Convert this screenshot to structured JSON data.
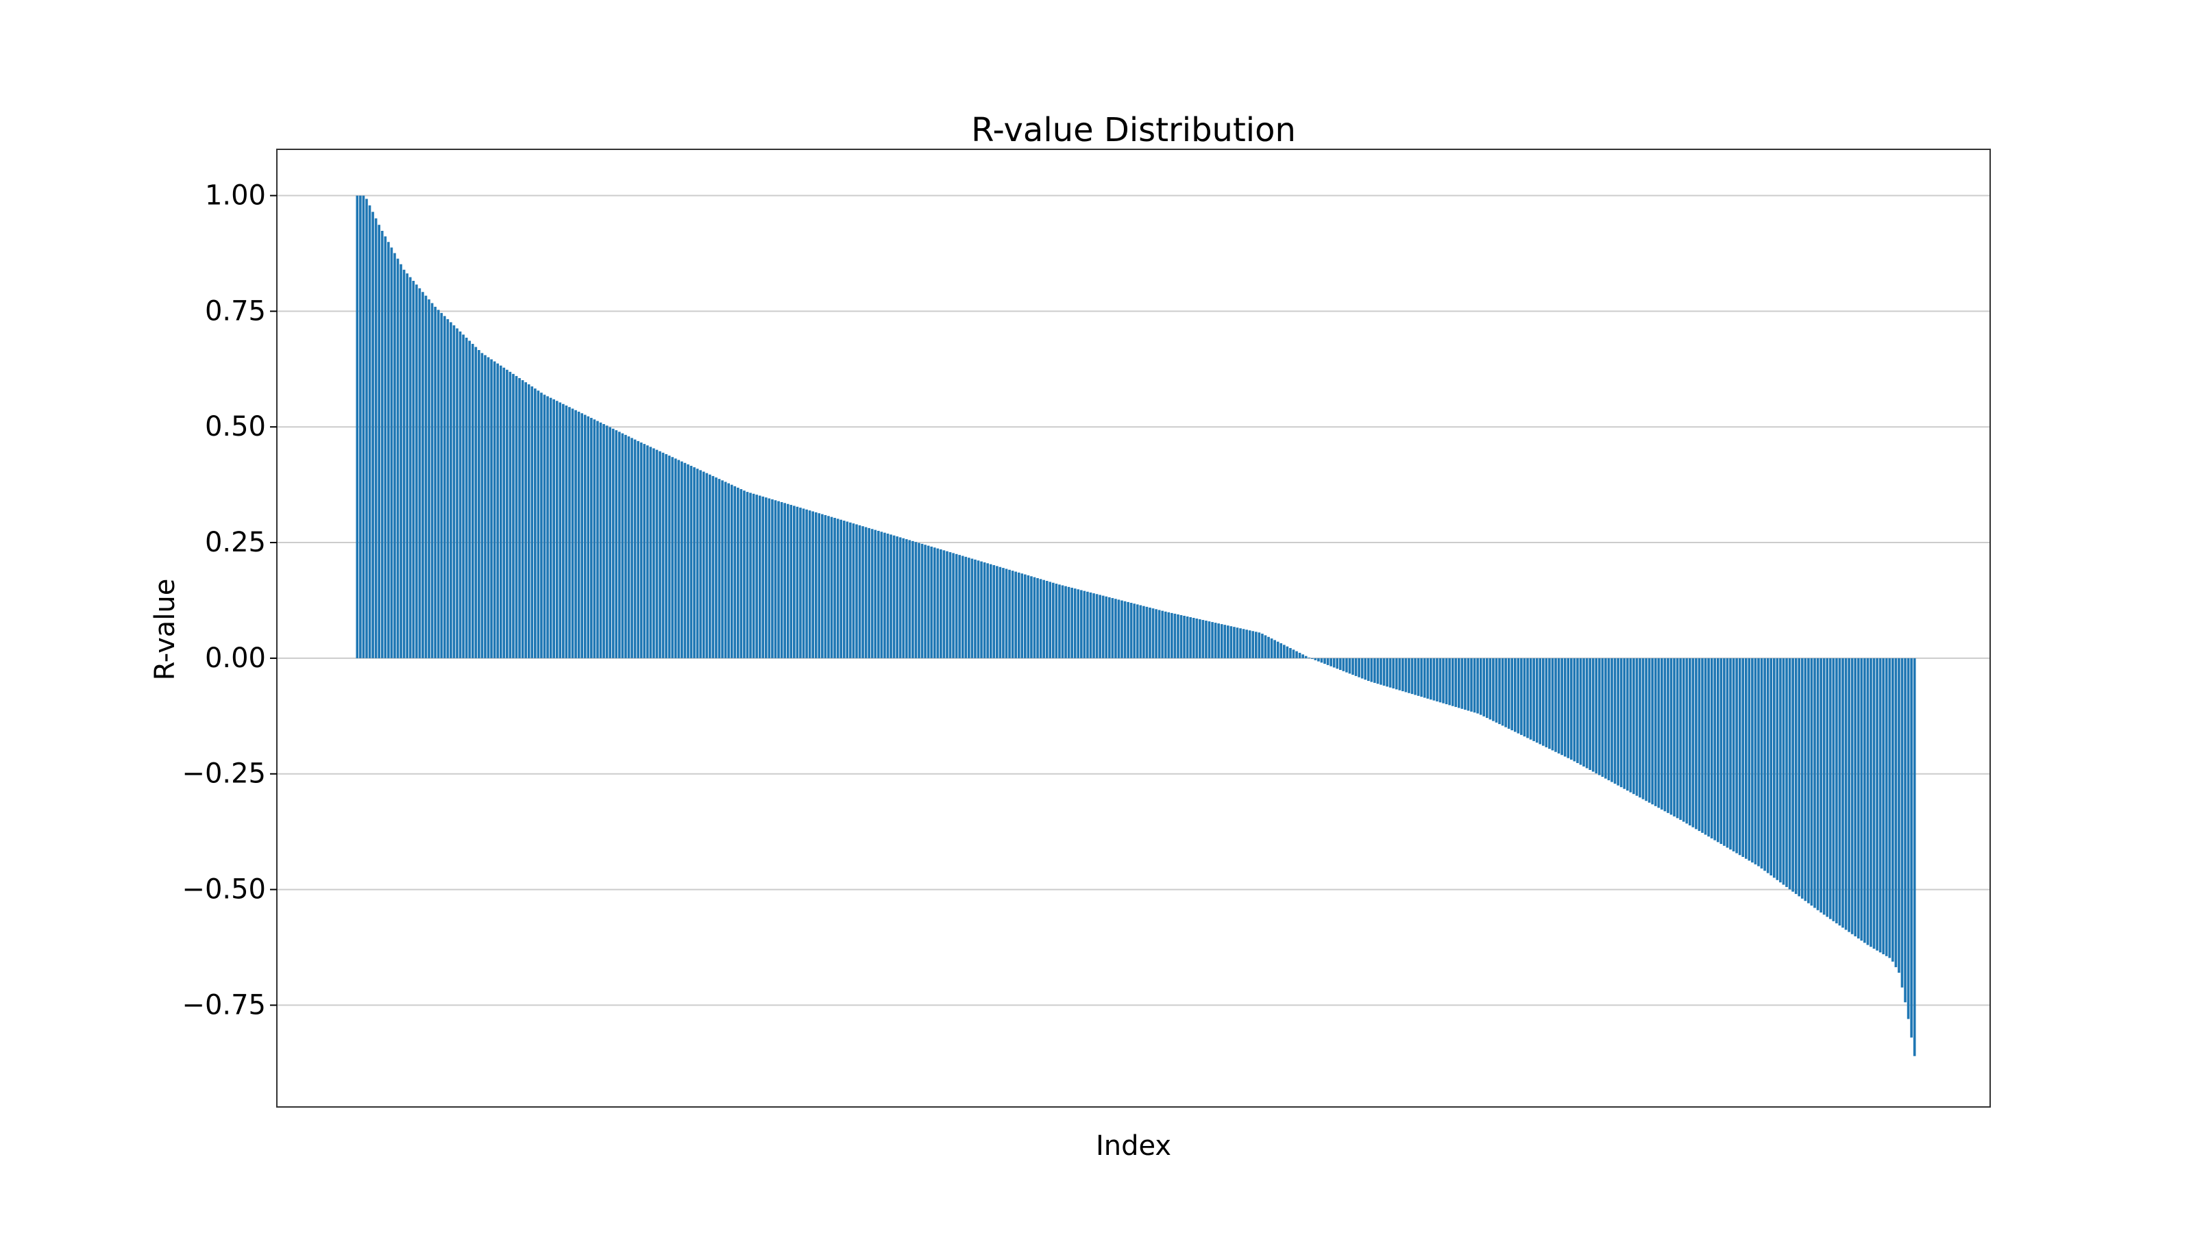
{
  "chart_data": {
    "type": "bar",
    "title": "R-value Distribution",
    "xlabel": "Index",
    "ylabel": "R-value",
    "ylim": [
      -0.97,
      1.1
    ],
    "yticks": [
      1.0,
      0.75,
      0.5,
      0.25,
      0.0,
      -0.25,
      -0.5,
      -0.75
    ],
    "ytick_labels": [
      "1.00",
      "0.75",
      "0.50",
      "0.25",
      "0.00",
      "−0.25",
      "−0.50",
      "−0.75"
    ],
    "grid": "horizontal",
    "bar_color": "#1f77b4",
    "bar_count": 500,
    "profile": {
      "index_fraction": [
        0.0,
        0.005,
        0.015,
        0.03,
        0.05,
        0.08,
        0.12,
        0.18,
        0.25,
        0.32,
        0.38,
        0.45,
        0.52,
        0.58,
        0.612,
        0.65,
        0.72,
        0.78,
        0.85,
        0.9,
        0.94,
        0.97,
        0.985,
        0.99,
        0.995,
        1.0
      ],
      "r_value": [
        1.0,
        1.0,
        0.93,
        0.84,
        0.76,
        0.66,
        0.57,
        0.47,
        0.36,
        0.29,
        0.23,
        0.16,
        0.1,
        0.055,
        0.0,
        -0.05,
        -0.12,
        -0.22,
        -0.35,
        -0.45,
        -0.55,
        -0.62,
        -0.65,
        -0.68,
        -0.76,
        -0.86
      ]
    }
  }
}
